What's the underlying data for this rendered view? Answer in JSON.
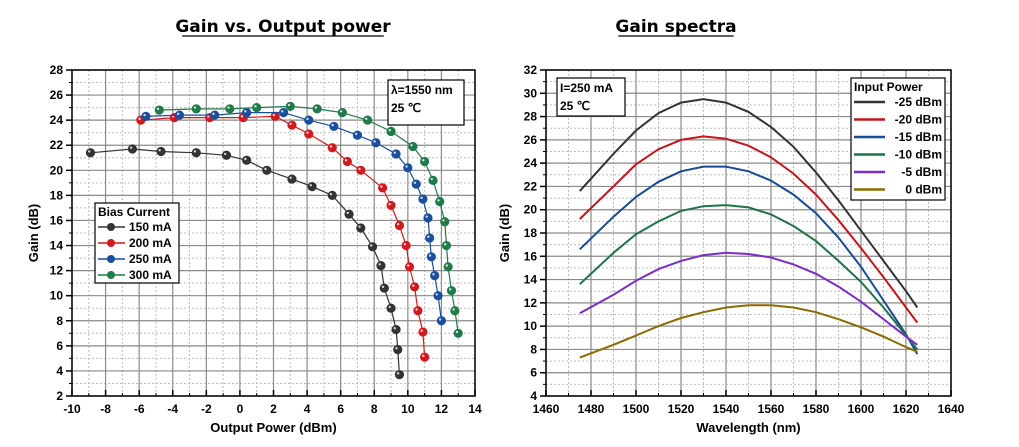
{
  "chart_data": [
    {
      "type": "scatter",
      "title": "Gain vs. Output power",
      "xlabel": "Output Power (dBm)",
      "ylabel": "Gain (dB)",
      "xlim": [
        -10,
        14
      ],
      "ylim": [
        2,
        28
      ],
      "xticks": [
        -10,
        -8,
        -6,
        -4,
        -2,
        0,
        2,
        4,
        6,
        8,
        10,
        12,
        14
      ],
      "yticks": [
        2,
        4,
        6,
        8,
        10,
        12,
        14,
        16,
        18,
        20,
        22,
        24,
        26,
        28
      ],
      "grid": true,
      "legend": {
        "title": "Bias Current",
        "position": "middle-left"
      },
      "annotation": [
        "λ=1550 nm",
        "25 ℃"
      ],
      "series": [
        {
          "name": "150 mA",
          "color": "#333333",
          "x": [
            -8.9,
            -6.4,
            -4.7,
            -2.6,
            -0.8,
            0.4,
            1.6,
            3.1,
            4.3,
            5.5,
            6.5,
            7.2,
            7.9,
            8.4,
            8.6,
            9.0,
            9.3,
            9.4,
            9.5
          ],
          "y": [
            21.4,
            21.7,
            21.5,
            21.4,
            21.2,
            20.8,
            20.0,
            19.3,
            18.7,
            18.0,
            16.5,
            15.4,
            13.9,
            12.4,
            10.6,
            9.0,
            7.3,
            5.7,
            3.7
          ]
        },
        {
          "name": "200 mA",
          "color": "#d11a1f",
          "x": [
            -5.9,
            -3.9,
            -1.8,
            0.2,
            2.1,
            3.1,
            4.1,
            5.5,
            6.4,
            7.2,
            8.5,
            9.0,
            9.5,
            9.9,
            10.1,
            10.4,
            10.6,
            10.9,
            11.0
          ],
          "y": [
            24.0,
            24.2,
            24.2,
            24.2,
            24.3,
            23.6,
            22.9,
            21.8,
            20.7,
            20.0,
            18.6,
            17.2,
            15.6,
            14.0,
            12.3,
            10.7,
            8.8,
            7.1,
            5.1
          ]
        },
        {
          "name": "250 mA",
          "color": "#1a4f9c",
          "x": [
            -5.6,
            -3.6,
            -1.5,
            0.4,
            2.6,
            4.1,
            5.6,
            7.0,
            8.1,
            9.3,
            10.0,
            10.5,
            10.9,
            11.2,
            11.3,
            11.4,
            11.6,
            11.8,
            12.0
          ],
          "y": [
            24.3,
            24.4,
            24.4,
            24.6,
            24.6,
            24.0,
            23.5,
            22.8,
            22.2,
            21.3,
            20.2,
            18.9,
            17.7,
            16.2,
            14.6,
            13.1,
            11.6,
            10.0,
            8.0
          ]
        },
        {
          "name": "300 mA",
          "color": "#217a4a",
          "x": [
            -4.8,
            -2.6,
            -0.6,
            1.0,
            3.0,
            4.6,
            6.1,
            7.6,
            9.0,
            10.3,
            11.0,
            11.5,
            11.9,
            12.2,
            12.3,
            12.4,
            12.6,
            12.8,
            13.0
          ],
          "y": [
            24.8,
            24.9,
            24.9,
            25.0,
            25.1,
            24.9,
            24.6,
            24.0,
            23.1,
            21.9,
            20.7,
            19.2,
            17.5,
            15.9,
            14.0,
            12.3,
            10.4,
            8.8,
            7.0
          ]
        }
      ]
    },
    {
      "type": "line",
      "title": "Gain spectra",
      "xlabel": "Wavelength (nm)",
      "ylabel": "Gain (dB)",
      "xlim": [
        1460,
        1640
      ],
      "ylim": [
        4,
        32
      ],
      "xticks": [
        1460,
        1480,
        1500,
        1520,
        1540,
        1560,
        1580,
        1600,
        1620,
        1640
      ],
      "yticks": [
        4,
        6,
        8,
        10,
        12,
        14,
        16,
        18,
        20,
        22,
        24,
        26,
        28,
        30,
        32
      ],
      "grid": true,
      "legend": {
        "title": "Input Power",
        "position": "top-right"
      },
      "annotation": [
        "I=250 mA",
        "25 ℃"
      ],
      "series": [
        {
          "name": "-25 dBm",
          "color": "#333333",
          "x": [
            1475,
            1490,
            1500,
            1510,
            1520,
            1530,
            1540,
            1550,
            1560,
            1570,
            1580,
            1590,
            1600,
            1610,
            1620,
            1625
          ],
          "y": [
            21.6,
            24.8,
            26.8,
            28.3,
            29.2,
            29.5,
            29.2,
            28.4,
            27.1,
            25.4,
            23.2,
            20.8,
            18.2,
            15.6,
            13.0,
            11.6
          ]
        },
        {
          "name": "-20 dBm",
          "color": "#c0161c",
          "x": [
            1475,
            1490,
            1500,
            1510,
            1520,
            1530,
            1540,
            1550,
            1560,
            1570,
            1580,
            1590,
            1600,
            1610,
            1620,
            1625
          ],
          "y": [
            19.2,
            22.0,
            23.9,
            25.2,
            26.0,
            26.3,
            26.1,
            25.5,
            24.5,
            23.1,
            21.3,
            19.1,
            16.7,
            14.2,
            11.6,
            10.3
          ]
        },
        {
          "name": "-15 dBm",
          "color": "#174b94",
          "x": [
            1475,
            1490,
            1500,
            1510,
            1520,
            1530,
            1540,
            1550,
            1560,
            1570,
            1580,
            1590,
            1600,
            1610,
            1620,
            1625
          ],
          "y": [
            16.6,
            19.4,
            21.1,
            22.4,
            23.3,
            23.7,
            23.7,
            23.3,
            22.5,
            21.3,
            19.7,
            17.6,
            15.1,
            12.2,
            9.3,
            7.6
          ]
        },
        {
          "name": "-10 dBm",
          "color": "#1f7346",
          "x": [
            1475,
            1490,
            1500,
            1510,
            1520,
            1530,
            1540,
            1550,
            1560,
            1570,
            1580,
            1590,
            1600,
            1610,
            1620,
            1625
          ],
          "y": [
            13.6,
            16.3,
            17.9,
            19.0,
            19.9,
            20.3,
            20.4,
            20.2,
            19.6,
            18.6,
            17.3,
            15.6,
            13.8,
            11.6,
            9.2,
            8.0
          ]
        },
        {
          "name": "-5 dBm",
          "color": "#7b2ec1",
          "x": [
            1475,
            1490,
            1500,
            1510,
            1520,
            1530,
            1540,
            1550,
            1560,
            1570,
            1580,
            1590,
            1600,
            1610,
            1620,
            1625
          ],
          "y": [
            11.1,
            12.7,
            13.9,
            14.9,
            15.6,
            16.1,
            16.3,
            16.2,
            15.9,
            15.3,
            14.5,
            13.4,
            12.1,
            10.6,
            9.1,
            8.4
          ]
        },
        {
          "name": "0 dBm",
          "color": "#8a6b00",
          "x": [
            1475,
            1490,
            1500,
            1510,
            1520,
            1530,
            1540,
            1550,
            1560,
            1570,
            1580,
            1590,
            1600,
            1610,
            1620,
            1625
          ],
          "y": [
            7.3,
            8.4,
            9.2,
            10.0,
            10.7,
            11.2,
            11.6,
            11.8,
            11.8,
            11.6,
            11.2,
            10.6,
            9.9,
            9.1,
            8.2,
            7.8
          ]
        }
      ]
    }
  ]
}
